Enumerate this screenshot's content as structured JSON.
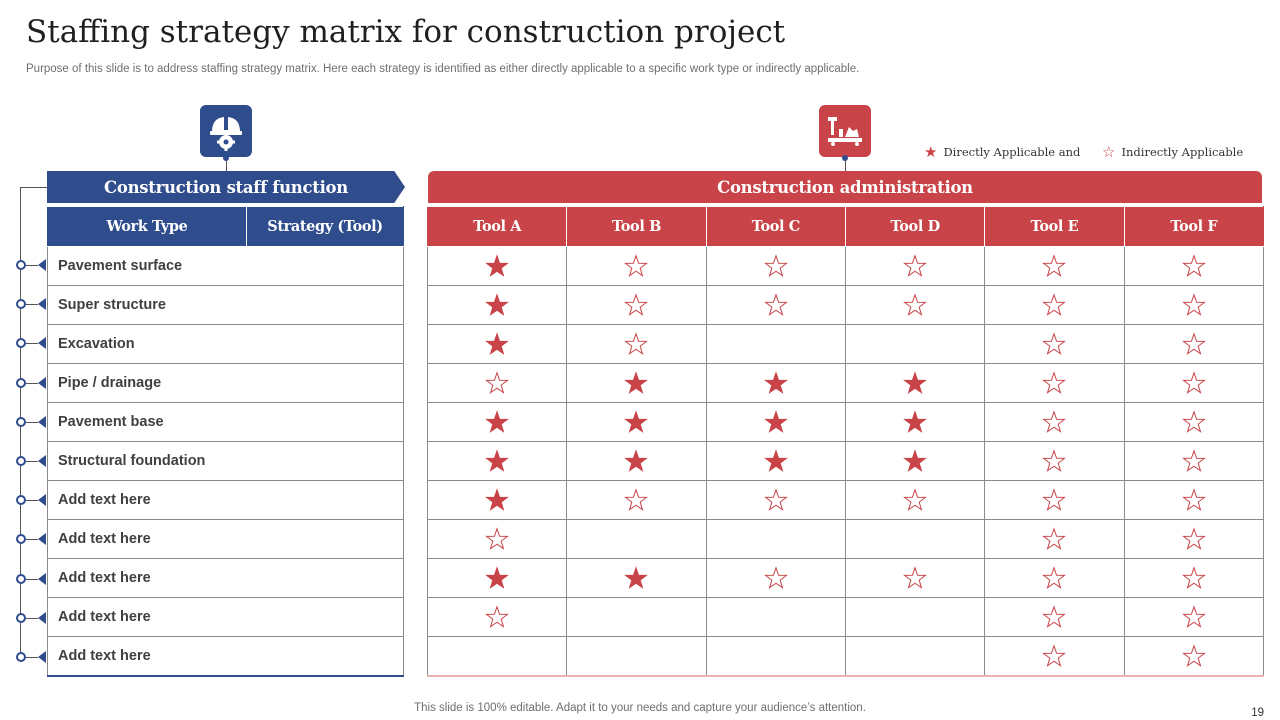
{
  "slide": {
    "title": "Staffing strategy matrix for construction project",
    "subtitle": "Purpose of this slide is to address staffing strategy matrix. Here each strategy is identified as either directly applicable to a specific work type  or indirectly applicable.",
    "footer": "This slide is 100% editable. Adapt it to your needs and capture your audience’s attention.",
    "page_number": "19"
  },
  "icons": {
    "left": "hardhat-gear-icon",
    "right": "construction-tools-icon"
  },
  "legend": {
    "direct_label": "Directly Applicable and",
    "indirect_label": "Indirectly Applicable"
  },
  "left_section": {
    "banner": "Construction staff function",
    "headers": [
      "Work Type",
      "Strategy (Tool)"
    ],
    "rows": [
      "Pavement surface",
      "Super structure",
      "Excavation",
      "Pipe / drainage",
      "Pavement base",
      "Structural foundation",
      "Add  text here",
      "Add  text here",
      "Add  text here",
      "Add  text here",
      "Add  text here"
    ]
  },
  "right_section": {
    "banner": "Construction administration",
    "headers": [
      "Tool A",
      "Tool B",
      "Tool C",
      "Tool D",
      "Tool E",
      "Tool F"
    ],
    "matrix": [
      [
        "D",
        "I",
        "I",
        "I",
        "I",
        "I"
      ],
      [
        "D",
        "I",
        "I",
        "I",
        "I",
        "I"
      ],
      [
        "D",
        "I",
        "",
        "",
        "I",
        "I"
      ],
      [
        "I",
        "D",
        "D",
        "D",
        "I",
        "I"
      ],
      [
        "D",
        "D",
        "D",
        "D",
        "I",
        "I"
      ],
      [
        "D",
        "D",
        "D",
        "D",
        "I",
        "I"
      ],
      [
        "D",
        "I",
        "I",
        "I",
        "I",
        "I"
      ],
      [
        "I",
        "",
        "",
        "",
        "I",
        "I"
      ],
      [
        "D",
        "D",
        "I",
        "I",
        "I",
        "I"
      ],
      [
        "I",
        "",
        "",
        "",
        "I",
        "I"
      ],
      [
        "",
        "",
        "",
        "",
        "I",
        "I"
      ]
    ]
  },
  "colors": {
    "blue": "#2f4d8c",
    "red": "#c94448"
  }
}
